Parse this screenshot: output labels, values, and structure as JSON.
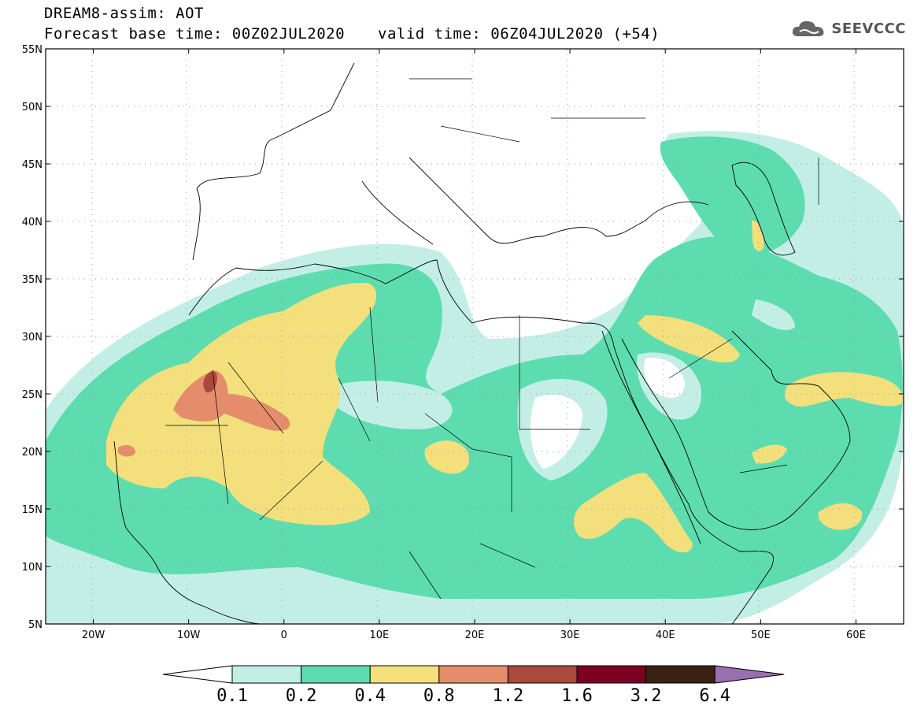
{
  "header": {
    "line1": "DREAM8-assim: AOT",
    "line2": "Forecast base time: 00Z02JUL2020",
    "line3": "valid time: 06Z04JUL2020 (+54)",
    "logo_text": "SEEVCCC"
  },
  "map": {
    "lon_range": [
      -25,
      65
    ],
    "lat_range": [
      5,
      55
    ],
    "lat_labels": [
      "55N",
      "50N",
      "45N",
      "40N",
      "35N",
      "30N",
      "25N",
      "20N",
      "15N",
      "10N",
      "5N"
    ],
    "lon_labels": [
      "20W",
      "10W",
      "0",
      "10E",
      "20E",
      "30E",
      "40E",
      "50E",
      "60E"
    ],
    "grid": "dotted"
  },
  "colorbar": {
    "colors": [
      "#ffffff",
      "#c3eee6",
      "#5ddcb0",
      "#f3e07c",
      "#e58d6a",
      "#a94a3c",
      "#7c0022",
      "#3a2212",
      "#9a6fb0"
    ],
    "labels": [
      "0.1",
      "0.2",
      "0.4",
      "0.8",
      "1.2",
      "1.6",
      "3.2",
      "6.4"
    ]
  }
}
